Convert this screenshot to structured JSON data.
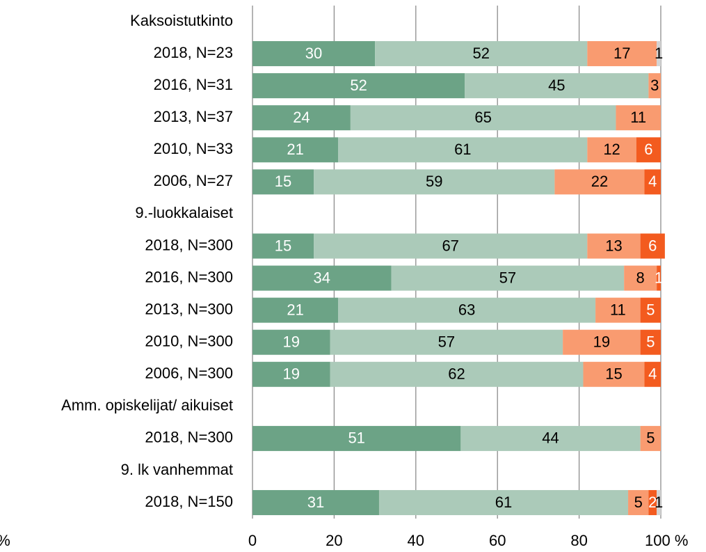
{
  "chart_data": {
    "type": "stacked-bar-horizontal",
    "categories": [
      "Kaksoistutkinto",
      "2018, N=23",
      "2016, N=31",
      "2013, N=37",
      "2010, N=33",
      "2006, N=27",
      "9.-luokkalaiset",
      "2018, N=300",
      "2016, N=300",
      "2013, N=300",
      "2010, N=300",
      "2006, N=300",
      "Amm. opiskelijat/ aikuiset",
      "2018, N=300",
      "9. lk vanhemmat",
      "2018, N=150"
    ],
    "series": [
      {
        "color": "#6ca386",
        "label_color": "#ffffff",
        "values": [
          null,
          30,
          52,
          24,
          21,
          15,
          null,
          15,
          34,
          21,
          19,
          19,
          null,
          51,
          null,
          31
        ]
      },
      {
        "color": "#abcab9",
        "label_color": "#000000",
        "values": [
          null,
          52,
          45,
          65,
          61,
          59,
          null,
          67,
          57,
          63,
          57,
          62,
          null,
          44,
          null,
          61
        ]
      },
      {
        "color": "#f99b70",
        "label_color": "#000000",
        "values": [
          null,
          17,
          3,
          11,
          12,
          22,
          null,
          13,
          8,
          11,
          19,
          15,
          null,
          5,
          null,
          5
        ]
      },
      {
        "color": "#f35b1f",
        "label_color": "#ffffff",
        "values": [
          null,
          null,
          null,
          null,
          6,
          4,
          null,
          6,
          1,
          5,
          5,
          4,
          null,
          null,
          null,
          2
        ]
      },
      {
        "color": "#d3d3d3",
        "label_color": "#000000",
        "values": [
          null,
          1,
          null,
          null,
          null,
          null,
          null,
          null,
          null,
          null,
          null,
          null,
          null,
          null,
          null,
          1
        ]
      }
    ],
    "xlim": [
      0,
      100
    ],
    "xticks": [
      0,
      20,
      40,
      60,
      80,
      {
        "value": 100,
        "label": "100 %"
      }
    ],
    "annotations": [
      "%"
    ],
    "grid": true
  }
}
